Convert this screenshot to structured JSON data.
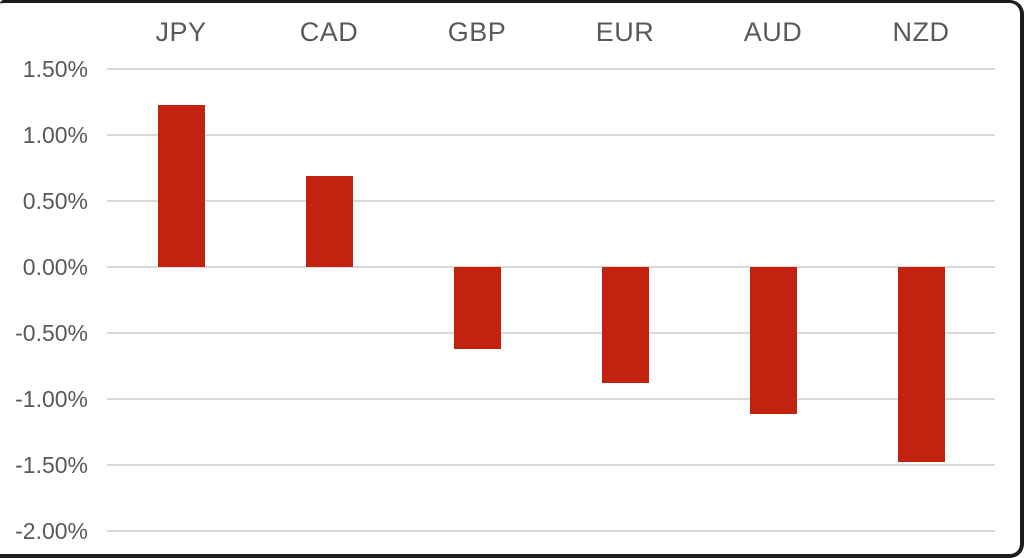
{
  "chart_data": {
    "type": "bar",
    "title": "",
    "xlabel": "",
    "ylabel": "",
    "categories": [
      "JPY",
      "CAD",
      "GBP",
      "EUR",
      "AUD",
      "NZD"
    ],
    "values": [
      1.23,
      0.69,
      -0.62,
      -0.88,
      -1.11,
      -1.48
    ],
    "value_unit": "percent",
    "ylim": [
      -2.0,
      1.5
    ],
    "ytick_step": 0.5,
    "yticks": [
      1.5,
      1.0,
      0.5,
      0.0,
      -0.5,
      -1.0,
      -1.5,
      -2.0
    ],
    "ytick_labels": [
      "1.50%",
      "1.00%",
      "0.50%",
      "0.00%",
      "-0.50%",
      "-1.00%",
      "-1.50%",
      "-2.00%"
    ],
    "category_label_position": "top",
    "grid": true,
    "legend": false,
    "colors": {
      "bar": "#c3220e",
      "axis_text": "#595959",
      "gridline": "#d9d9d9",
      "frame_border": "#1c1c1c",
      "background": "#ffffff"
    }
  }
}
